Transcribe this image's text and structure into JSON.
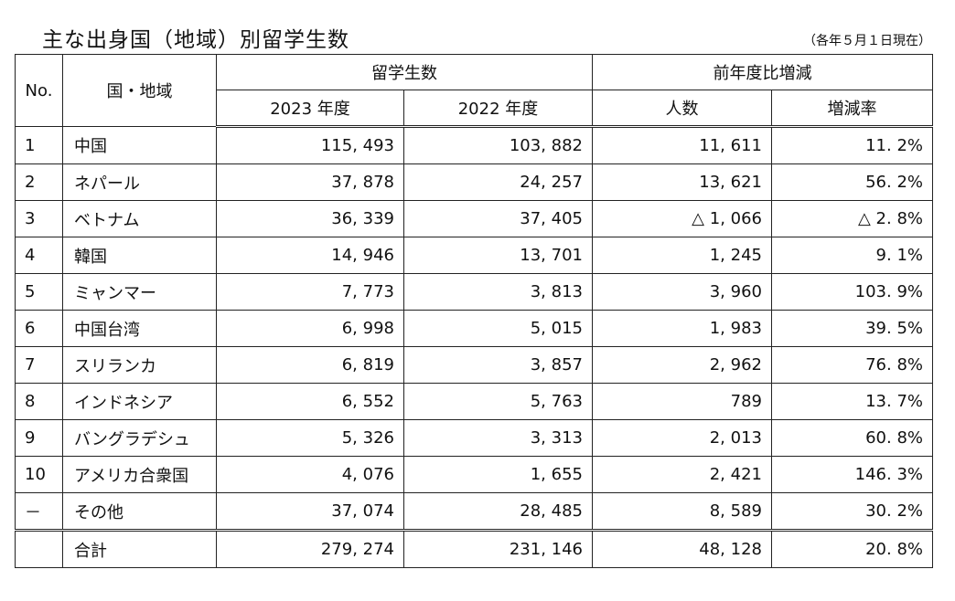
{
  "title": "主な出身国（地域）別留学生数",
  "note": "（各年５月１日現在）",
  "header": {
    "no": "No.",
    "country": "国・地域",
    "students": "留学生数",
    "year_2023": "2023 年度",
    "year_2022": "2022 年度",
    "change": "前年度比増減",
    "change_people": "人数",
    "change_rate": "増減率"
  },
  "rows": [
    {
      "no": "1",
      "name": "中国",
      "y2023": "115, 493",
      "y2022": "103, 882",
      "diff": "11, 611",
      "rate": "11. 2%"
    },
    {
      "no": "2",
      "name": "ネパール",
      "y2023": "37, 878",
      "y2022": "24, 257",
      "diff": "13, 621",
      "rate": "56. 2%"
    },
    {
      "no": "3",
      "name": "ベトナム",
      "y2023": "36, 339",
      "y2022": "37, 405",
      "diff": "△ 1, 066",
      "rate": "△ 2. 8%"
    },
    {
      "no": "4",
      "name": "韓国",
      "y2023": "14, 946",
      "y2022": "13, 701",
      "diff": "1, 245",
      "rate": "9. 1%"
    },
    {
      "no": "5",
      "name": "ミャンマー",
      "y2023": "7, 773",
      "y2022": "3, 813",
      "diff": "3, 960",
      "rate": "103. 9%"
    },
    {
      "no": "6",
      "name": "中国台湾",
      "y2023": "6, 998",
      "y2022": "5, 015",
      "diff": "1, 983",
      "rate": "39. 5%"
    },
    {
      "no": "7",
      "name": "スリランカ",
      "y2023": "6, 819",
      "y2022": "3, 857",
      "diff": "2, 962",
      "rate": "76. 8%"
    },
    {
      "no": "8",
      "name": "インドネシア",
      "y2023": "6, 552",
      "y2022": "5, 763",
      "diff": "789",
      "rate": "13. 7%"
    },
    {
      "no": "9",
      "name": "バングラデシュ",
      "y2023": "5, 326",
      "y2022": "3, 313",
      "diff": "2, 013",
      "rate": "60. 8%"
    },
    {
      "no": "10",
      "name": "アメリカ合衆国",
      "y2023": "4, 076",
      "y2022": "1, 655",
      "diff": "2, 421",
      "rate": "146. 3%"
    },
    {
      "no": "－",
      "name": "その他",
      "y2023": "37, 074",
      "y2022": "28, 485",
      "diff": "8, 589",
      "rate": "30. 2%"
    }
  ],
  "total": {
    "no": "",
    "name": "合計",
    "y2023": "279, 274",
    "y2022": "231, 146",
    "diff": "48, 128",
    "rate": "20. 8%"
  }
}
